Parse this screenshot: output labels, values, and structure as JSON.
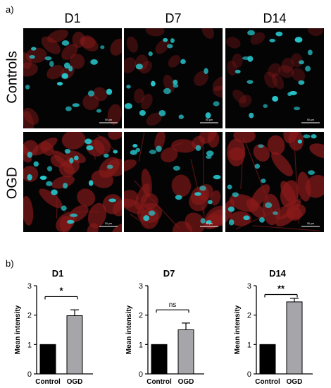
{
  "figure": {
    "panel_a_label": "a)",
    "panel_b_label": "b)",
    "columns": [
      "D1",
      "D7",
      "D14"
    ],
    "rows": [
      "Controls",
      "OGD"
    ],
    "scale_bar_label": "50 µm",
    "nucleus_color": "#27c6cc",
    "cytoplasm_color": "#8a1a1a"
  },
  "micrographs": [
    {
      "name": "micrograph-controls-d1",
      "red_intensity": 0.45
    },
    {
      "name": "micrograph-controls-d7",
      "red_intensity": 0.25
    },
    {
      "name": "micrograph-controls-d14",
      "red_intensity": 0.2
    },
    {
      "name": "micrograph-ogd-d1",
      "red_intensity": 0.8
    },
    {
      "name": "micrograph-ogd-d7",
      "red_intensity": 0.75
    },
    {
      "name": "micrograph-ogd-d14",
      "red_intensity": 0.9
    }
  ],
  "chart_data": [
    {
      "type": "bar",
      "title": "D1",
      "ylabel": "Mean intensity",
      "categories": [
        "Control",
        "OGD"
      ],
      "values": [
        1.0,
        1.98
      ],
      "error": [
        0,
        0.2
      ],
      "colors": [
        "#000000",
        "#a6a6aa"
      ],
      "ylim": [
        0,
        3
      ],
      "yticks": [
        "0",
        "1",
        "2",
        "3"
      ],
      "significance": "*"
    },
    {
      "type": "bar",
      "title": "D7",
      "ylabel": "Mean intensity",
      "categories": [
        "Control",
        "OGD"
      ],
      "values": [
        1.0,
        1.5
      ],
      "error": [
        0,
        0.23
      ],
      "colors": [
        "#000000",
        "#a6a6aa"
      ],
      "ylim": [
        0,
        3
      ],
      "yticks": [
        "0",
        "1",
        "2",
        "3"
      ],
      "significance": "ns"
    },
    {
      "type": "bar",
      "title": "D14",
      "ylabel": "Mean intensity",
      "categories": [
        "Control",
        "OGD"
      ],
      "values": [
        1.0,
        2.45
      ],
      "error": [
        0,
        0.12
      ],
      "colors": [
        "#000000",
        "#a6a6aa"
      ],
      "ylim": [
        0,
        3
      ],
      "yticks": [
        "0",
        "1",
        "2",
        "3"
      ],
      "significance": "**"
    }
  ]
}
